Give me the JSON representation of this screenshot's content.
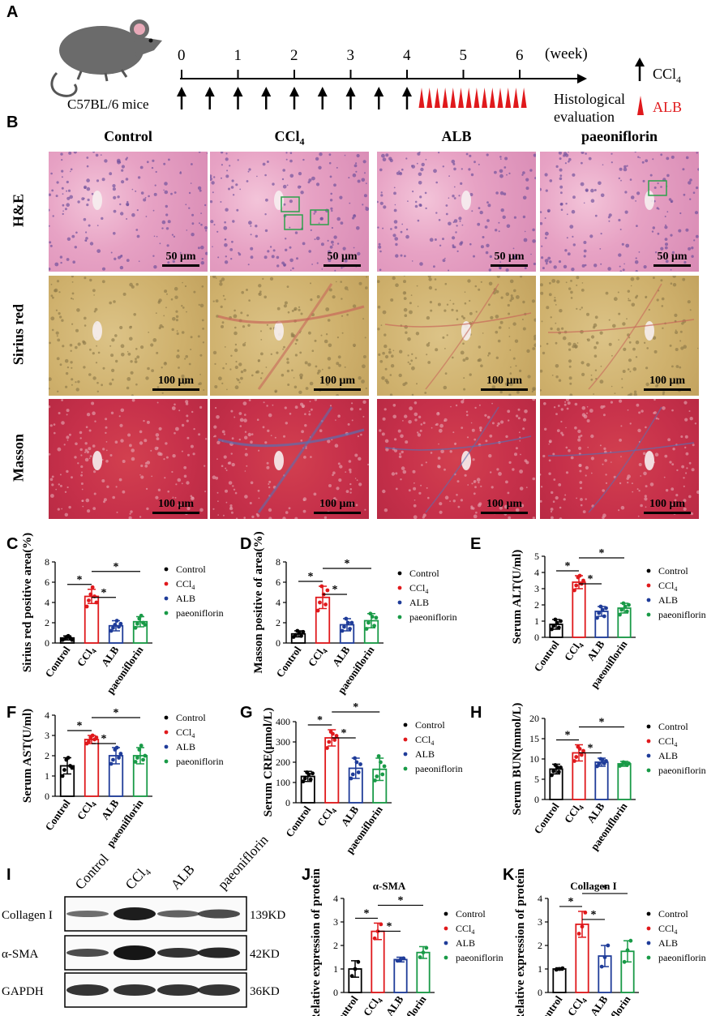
{
  "panel_labels": {
    "A": "A",
    "B": "B",
    "C": "C",
    "D": "D",
    "E": "E",
    "F": "F",
    "G": "G",
    "H": "H",
    "I": "I",
    "J": "J",
    "K": "K"
  },
  "timeline": {
    "ticks": [
      "0",
      "1",
      "2",
      "3",
      "4",
      "5",
      "6"
    ],
    "unit": "(week)",
    "mouse_label": "C57BL/6 mice",
    "endpoint": "Histological\nevaluation",
    "endpoint_line1": "Histological",
    "endpoint_line2": "evaluation",
    "legend_ccl4": "CCl",
    "legend_ccl4_sub": "4",
    "legend_alb": "ALB",
    "ccl4_color": "#000000",
    "alb_color": "#e0191c"
  },
  "histology": {
    "columns": [
      "Control",
      "CCl",
      "ALB",
      "paeoniflorin"
    ],
    "ccl4_sub": "4",
    "rows": [
      {
        "name": "H&E",
        "scale": "50 μm"
      },
      {
        "name": "Sirius red",
        "scale": "100 μm"
      },
      {
        "name": "Masson",
        "scale": "100 μm"
      }
    ]
  },
  "groups": [
    "Control",
    "CCl4",
    "ALB",
    "paeoniflorin"
  ],
  "group_colors": [
    "#000000",
    "#e0191c",
    "#1f3c99",
    "#199a47"
  ],
  "legend": [
    "Control",
    "CCl4",
    "ALB",
    "paeoniflorin"
  ],
  "star": "*",
  "chart_data": [
    {
      "panel": "C",
      "type": "bar",
      "ylabel": "Sirius red positive area(%)",
      "ylim": [
        0,
        8
      ],
      "yticks": [
        0,
        2,
        4,
        6,
        8
      ],
      "categories": [
        "Control",
        "CCl4",
        "ALB",
        "paeoniflorin"
      ],
      "values": [
        0.5,
        4.6,
        1.7,
        2.1
      ],
      "errors": [
        0.2,
        0.7,
        0.5,
        0.5
      ],
      "points": [
        [
          0.3,
          0.4,
          0.6,
          0.7,
          0.5,
          0.3
        ],
        [
          3.6,
          4.2,
          4.8,
          5.5,
          4.6,
          4.0
        ],
        [
          1.2,
          1.5,
          1.8,
          2.2,
          1.6,
          1.9
        ],
        [
          1.5,
          1.9,
          2.4,
          2.7,
          2.0,
          1.8
        ]
      ]
    },
    {
      "panel": "D",
      "type": "bar",
      "ylabel": "Masson positive of area(%)",
      "ylim": [
        0,
        8
      ],
      "yticks": [
        0,
        2,
        4,
        6,
        8
      ],
      "categories": [
        "Control",
        "CCl4",
        "ALB",
        "paeoniflorin"
      ],
      "values": [
        0.9,
        4.5,
        1.8,
        2.2
      ],
      "errors": [
        0.3,
        1.1,
        0.6,
        0.7
      ],
      "points": [
        [
          0.6,
          0.8,
          1.2,
          1.0,
          0.7,
          1.1
        ],
        [
          3.2,
          4.0,
          5.6,
          4.8,
          3.8,
          5.2
        ],
        [
          1.2,
          1.6,
          2.4,
          2.0,
          1.4,
          2.0
        ],
        [
          1.4,
          2.0,
          2.9,
          2.6,
          1.7,
          2.5
        ]
      ]
    },
    {
      "panel": "E",
      "type": "bar",
      "ylabel": "Serum ALT(U/ml)",
      "ylim": [
        0,
        5
      ],
      "yticks": [
        0,
        1,
        2,
        3,
        4,
        5
      ],
      "categories": [
        "Control",
        "CCl4",
        "ALB",
        "paeoniflorin"
      ],
      "values": [
        0.8,
        3.4,
        1.6,
        1.8
      ],
      "errors": [
        0.3,
        0.4,
        0.3,
        0.3
      ],
      "points": [
        [
          0.5,
          0.7,
          1.1,
          0.9,
          0.6,
          1.0
        ],
        [
          2.9,
          3.2,
          3.7,
          3.8,
          3.3,
          3.5
        ],
        [
          1.2,
          1.5,
          1.9,
          1.7,
          1.3,
          1.8
        ],
        [
          1.4,
          1.7,
          2.1,
          1.9,
          1.6,
          2.0
        ]
      ]
    },
    {
      "panel": "F",
      "type": "bar",
      "ylabel": "Serum AST(U/ml)",
      "ylim": [
        0,
        4
      ],
      "yticks": [
        0,
        1,
        2,
        3,
        4
      ],
      "categories": [
        "Control",
        "CCl4",
        "ALB",
        "paeoniflorin"
      ],
      "values": [
        1.5,
        2.8,
        2.0,
        2.0
      ],
      "errors": [
        0.4,
        0.2,
        0.4,
        0.4
      ],
      "points": [
        [
          1.0,
          1.3,
          1.8,
          1.9,
          1.5,
          1.4
        ],
        [
          2.6,
          2.7,
          2.9,
          3.0,
          2.8,
          2.9
        ],
        [
          1.6,
          1.8,
          2.3,
          2.4,
          1.9,
          2.1
        ],
        [
          1.7,
          1.9,
          2.3,
          2.5,
          1.8,
          2.0
        ]
      ]
    },
    {
      "panel": "G",
      "type": "bar",
      "ylabel": "Serum CRE(μmol/L)",
      "ylim": [
        0,
        400
      ],
      "yticks": [
        0,
        100,
        200,
        300,
        400
      ],
      "categories": [
        "Control",
        "CCl4",
        "ALB",
        "paeoniflorin"
      ],
      "values": [
        130,
        320,
        170,
        165
      ],
      "errors": [
        25,
        40,
        50,
        55
      ],
      "points": [
        [
          105,
          120,
          150,
          140,
          115,
          145
        ],
        [
          270,
          300,
          350,
          340,
          310,
          330
        ],
        [
          120,
          140,
          220,
          200,
          150,
          190
        ],
        [
          110,
          130,
          230,
          200,
          140,
          180
        ]
      ]
    },
    {
      "panel": "H",
      "type": "bar",
      "ylabel": "Serum BUN(mmol/L)",
      "ylim": [
        0,
        20
      ],
      "yticks": [
        0,
        5,
        10,
        15,
        20
      ],
      "categories": [
        "Control",
        "CCl4",
        "ALB",
        "paeoniflorin"
      ],
      "values": [
        7.5,
        11.5,
        9.2,
        8.8
      ],
      "errors": [
        1.2,
        2.0,
        1.0,
        0.6
      ],
      "points": [
        [
          6.0,
          7.0,
          8.5,
          8.0,
          6.8,
          7.9
        ],
        [
          9.5,
          10.5,
          13.0,
          12.5,
          11.0,
          12.0
        ],
        [
          8.2,
          8.8,
          10.0,
          9.8,
          8.9,
          9.5
        ],
        [
          8.3,
          8.6,
          9.2,
          9.0,
          8.5,
          8.9
        ]
      ]
    },
    {
      "panel": "J",
      "type": "bar",
      "title": "α-SMA",
      "ylabel": "Relative expression of protein",
      "ylim": [
        0,
        4
      ],
      "yticks": [
        0,
        1,
        2,
        3,
        4
      ],
      "categories": [
        "Control",
        "CCl4",
        "ALB",
        "paeoniflorin"
      ],
      "values": [
        1.0,
        2.6,
        1.4,
        1.7
      ],
      "errors": [
        0.35,
        0.35,
        0.1,
        0.25
      ],
      "points": [
        [
          0.7,
          1.0,
          1.3
        ],
        [
          2.3,
          2.6,
          2.9
        ],
        [
          1.35,
          1.4,
          1.45
        ],
        [
          1.5,
          1.7,
          1.9
        ]
      ]
    },
    {
      "panel": "K",
      "type": "bar",
      "title": "Collagen I",
      "ylabel": "Relative expression of protein",
      "ylim": [
        0,
        4
      ],
      "yticks": [
        0,
        1,
        2,
        3,
        4
      ],
      "categories": [
        "Control",
        "CCl4",
        "ALB",
        "paeoniflorin"
      ],
      "values": [
        1.0,
        2.9,
        1.55,
        1.75
      ],
      "errors": [
        0.05,
        0.55,
        0.45,
        0.45
      ],
      "points": [
        [
          0.97,
          1.0,
          1.03
        ],
        [
          2.5,
          2.8,
          3.4
        ],
        [
          1.1,
          1.5,
          2.0
        ],
        [
          1.3,
          1.8,
          2.2
        ]
      ]
    }
  ],
  "western": {
    "columns": [
      "Control",
      "CCl",
      "ALB",
      "paeoniflorin"
    ],
    "ccl4_sub": "4",
    "bands": [
      {
        "protein": "Collagen I",
        "kd": "139KD"
      },
      {
        "protein": "α-SMA",
        "kd": "42KD"
      },
      {
        "protein": "GAPDH",
        "kd": "36KD"
      }
    ]
  }
}
